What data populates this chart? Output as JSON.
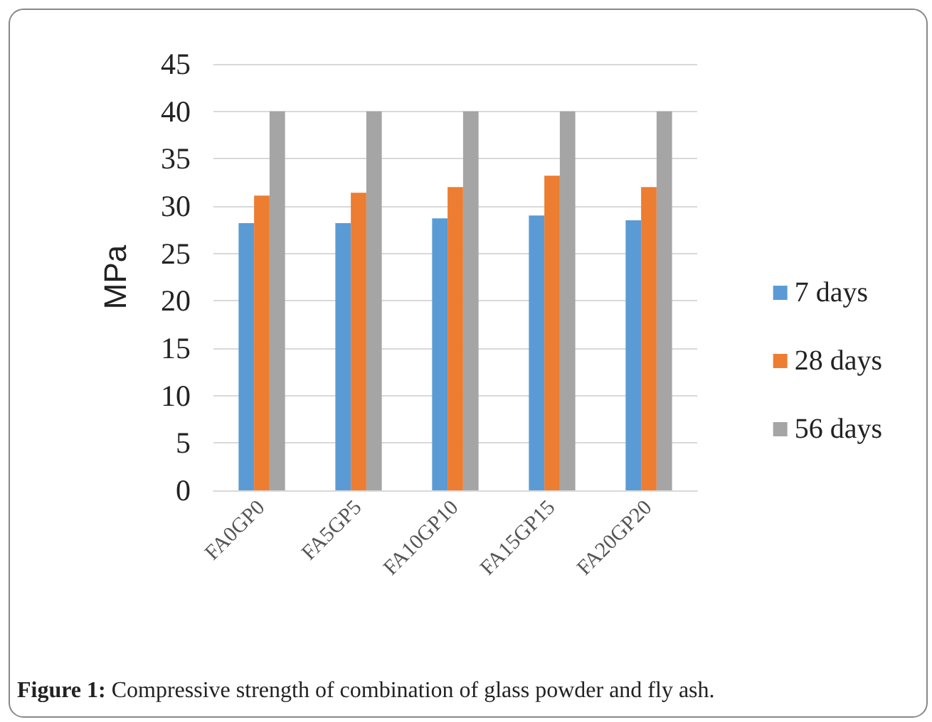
{
  "chart_data": {
    "type": "bar",
    "ylabel": "MPa",
    "categories": [
      "FA0GP0",
      "FA5GP5",
      "FA10GP10",
      "FA15GP15",
      "FA20GP20"
    ],
    "series": [
      {
        "name": "7 days",
        "color": "#5b9bd5",
        "values": [
          28.2,
          28.2,
          28.7,
          29.0,
          28.5
        ]
      },
      {
        "name": "28 days",
        "color": "#ed7d31",
        "values": [
          31.1,
          31.4,
          32.0,
          33.2,
          32.0
        ]
      },
      {
        "name": "56 days",
        "color": "#a5a5a5",
        "values": [
          40,
          40,
          40,
          40,
          40
        ]
      }
    ],
    "ylim": [
      0,
      45
    ],
    "yticks": [
      0,
      5,
      10,
      15,
      20,
      25,
      30,
      35,
      40,
      45
    ],
    "grid": "y",
    "legend": "right",
    "annotations": [
      "Figure 1: Compressive strength of combination of glass powder and fly ash."
    ]
  }
}
